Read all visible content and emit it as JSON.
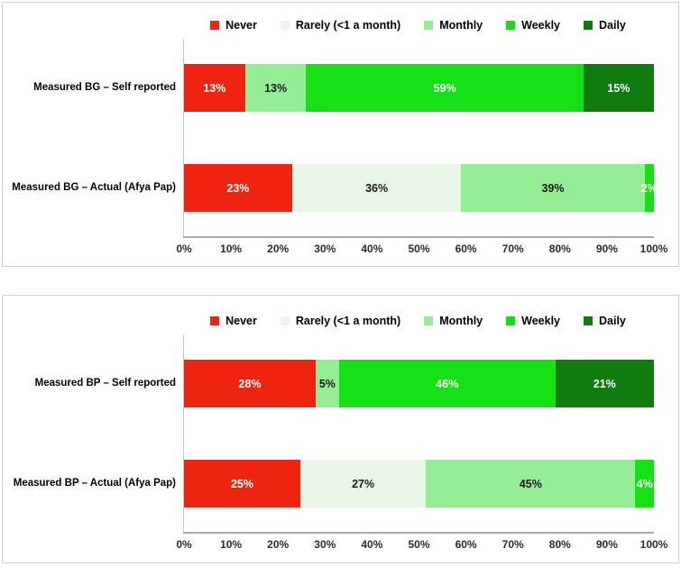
{
  "figure": {
    "background": "#ffffff",
    "box_border_color": "#c9d1d1",
    "axis_line_color": "#a6adad",
    "gridline_color": "#c2c9c9"
  },
  "series_styles": [
    {
      "name": "Never",
      "color": "#ee2410",
      "label_color": "#ffffff"
    },
    {
      "name": "Rarely (<1 a month)",
      "color": "#e9f7e8",
      "label_color": "#1a1a1a"
    },
    {
      "name": "Monthly",
      "color": "#95ed95",
      "label_color": "#1a1a1a"
    },
    {
      "name": "Weekly",
      "color": "#14e014",
      "label_color": "#ffffff"
    },
    {
      "name": "Daily",
      "color": "#107c10",
      "label_color": "#ffffff"
    }
  ],
  "chart_data": [
    {
      "type": "bar",
      "stacked": true,
      "orientation": "horizontal",
      "title": "",
      "categories": [
        "Measured BG – Self reported",
        "Measured BG – Actual (Afya Pap)"
      ],
      "series": [
        {
          "name": "Never",
          "values": [
            13,
            23
          ]
        },
        {
          "name": "Rarely (<1 a month)",
          "values": [
            0,
            36
          ]
        },
        {
          "name": "Monthly",
          "values": [
            13,
            39
          ]
        },
        {
          "name": "Weekly",
          "values": [
            59,
            2
          ]
        },
        {
          "name": "Daily",
          "values": [
            15,
            0
          ]
        }
      ],
      "xlim": [
        0,
        100
      ],
      "x_ticks": [
        "0%",
        "10%",
        "20%",
        "30%",
        "40%",
        "50%",
        "60%",
        "70%",
        "80%",
        "90%",
        "100%"
      ],
      "legend_position": "top",
      "grid": false,
      "data_label_format": "{v}%"
    },
    {
      "type": "bar",
      "stacked": true,
      "orientation": "horizontal",
      "title": "",
      "categories": [
        "Measured BP – Self reported",
        "Measured BP – Actual (Afya Pap)"
      ],
      "series": [
        {
          "name": "Never",
          "values": [
            28,
            25
          ]
        },
        {
          "name": "Rarely (<1 a month)",
          "values": [
            0,
            27
          ]
        },
        {
          "name": "Monthly",
          "values": [
            5,
            45
          ]
        },
        {
          "name": "Weekly",
          "values": [
            46,
            4
          ]
        },
        {
          "name": "Daily",
          "values": [
            21,
            0
          ]
        }
      ],
      "xlim": [
        0,
        100
      ],
      "x_ticks": [
        "0%",
        "10%",
        "20%",
        "30%",
        "40%",
        "50%",
        "60%",
        "70%",
        "80%",
        "90%",
        "100%"
      ],
      "legend_position": "top",
      "grid": false,
      "data_label_format": "{v}%"
    }
  ]
}
